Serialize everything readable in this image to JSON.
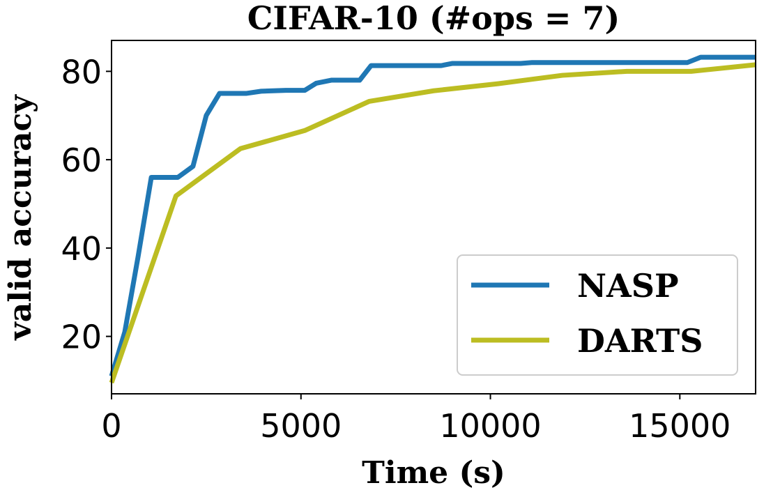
{
  "chart_data": {
    "type": "line",
    "title": "CIFAR-10 (#ops = 7)",
    "xlabel": "Time (s)",
    "ylabel": "valid accuracy",
    "xlim": [
      0,
      17000
    ],
    "ylim": [
      7,
      87
    ],
    "xticks": [
      0,
      5000,
      10000,
      15000
    ],
    "xtick_labels": [
      "0",
      "5000",
      "10000",
      "15000"
    ],
    "yticks": [
      20,
      40,
      60,
      80
    ],
    "ytick_labels": [
      "20",
      "40",
      "60",
      "80"
    ],
    "grid": false,
    "legend_position": "bottom-right",
    "series": [
      {
        "name": "NASP",
        "color": "#1f77b4",
        "x": [
          0,
          350,
          700,
          1050,
          1750,
          2150,
          2500,
          2850,
          3550,
          3950,
          4600,
          5100,
          5400,
          5800,
          6550,
          6850,
          8700,
          9000,
          10800,
          11100,
          15200,
          15550,
          17000
        ],
        "y": [
          11,
          21,
          38,
          56,
          56,
          58.5,
          70,
          75,
          75,
          75.5,
          75.7,
          75.7,
          77.3,
          78,
          78,
          81.3,
          81.3,
          81.8,
          81.8,
          82,
          82,
          83.2,
          83.2
        ]
      },
      {
        "name": "DARTS",
        "color": "#bcbd22",
        "x": [
          0,
          1700,
          3400,
          5100,
          6800,
          8500,
          10200,
          11900,
          13600,
          15300,
          17000
        ],
        "y": [
          9.5,
          51.8,
          62.5,
          66.6,
          73.2,
          75.6,
          77.2,
          79.1,
          80,
          80,
          81.5
        ]
      }
    ]
  }
}
